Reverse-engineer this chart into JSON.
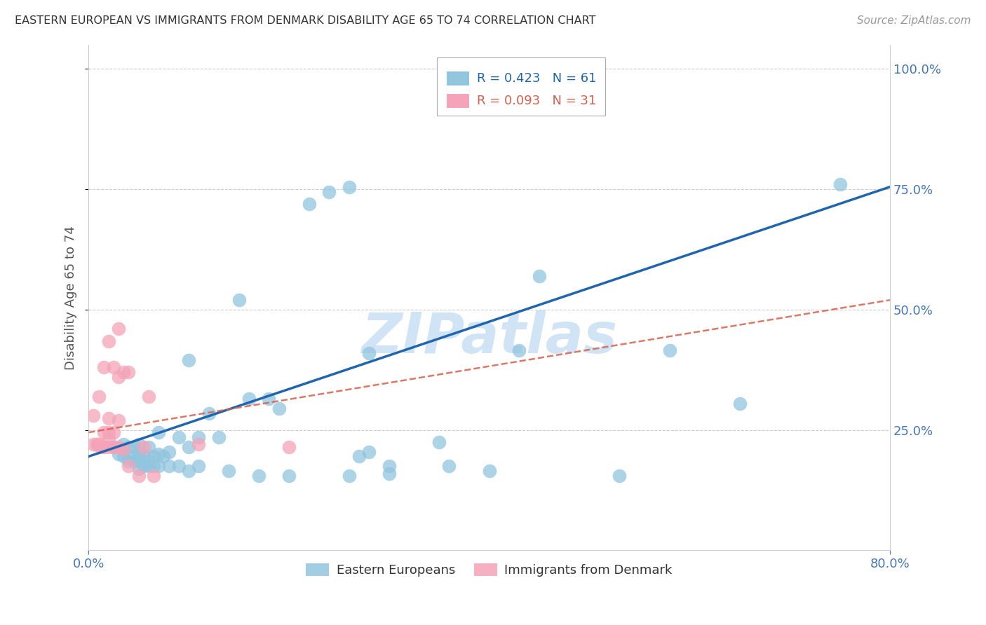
{
  "title": "EASTERN EUROPEAN VS IMMIGRANTS FROM DENMARK DISABILITY AGE 65 TO 74 CORRELATION CHART",
  "source": "Source: ZipAtlas.com",
  "ylabel": "Disability Age 65 to 74",
  "x_min": 0.0,
  "x_max": 0.8,
  "y_min": 0.0,
  "y_max": 1.05,
  "legend_r1": "R = 0.423",
  "legend_n1": "N = 61",
  "legend_r2": "R = 0.093",
  "legend_n2": "N = 31",
  "legend_label1": "Eastern Europeans",
  "legend_label2": "Immigrants from Denmark",
  "blue_color": "#92c5de",
  "pink_color": "#f4a3b8",
  "blue_line_color": "#2166ac",
  "pink_line_color": "#d6604d",
  "axis_color": "#4477bb",
  "grid_color": "#cccccc",
  "title_color": "#333333",
  "watermark_color": "#d0e4f5",
  "blue_scatter_x": [
    0.025,
    0.03,
    0.035,
    0.035,
    0.04,
    0.04,
    0.04,
    0.045,
    0.045,
    0.05,
    0.05,
    0.05,
    0.05,
    0.05,
    0.055,
    0.055,
    0.06,
    0.06,
    0.06,
    0.065,
    0.065,
    0.07,
    0.07,
    0.07,
    0.075,
    0.08,
    0.08,
    0.09,
    0.09,
    0.1,
    0.1,
    0.1,
    0.11,
    0.11,
    0.12,
    0.13,
    0.14,
    0.15,
    0.16,
    0.17,
    0.18,
    0.19,
    0.2,
    0.22,
    0.24,
    0.26,
    0.28,
    0.3,
    0.35,
    0.36,
    0.4,
    0.43,
    0.45,
    0.53,
    0.58,
    0.65,
    0.26,
    0.27,
    0.3,
    0.28,
    0.75
  ],
  "blue_scatter_y": [
    0.215,
    0.2,
    0.195,
    0.22,
    0.185,
    0.195,
    0.215,
    0.185,
    0.215,
    0.17,
    0.185,
    0.195,
    0.205,
    0.22,
    0.175,
    0.195,
    0.175,
    0.185,
    0.215,
    0.175,
    0.195,
    0.175,
    0.2,
    0.245,
    0.195,
    0.175,
    0.205,
    0.175,
    0.235,
    0.165,
    0.215,
    0.395,
    0.175,
    0.235,
    0.285,
    0.235,
    0.165,
    0.52,
    0.315,
    0.155,
    0.315,
    0.295,
    0.155,
    0.72,
    0.745,
    0.755,
    0.205,
    0.175,
    0.225,
    0.175,
    0.165,
    0.415,
    0.57,
    0.155,
    0.415,
    0.305,
    0.155,
    0.195,
    0.16,
    0.41,
    0.76
  ],
  "pink_scatter_x": [
    0.005,
    0.005,
    0.008,
    0.01,
    0.01,
    0.012,
    0.015,
    0.015,
    0.015,
    0.02,
    0.02,
    0.02,
    0.02,
    0.02,
    0.025,
    0.025,
    0.025,
    0.03,
    0.03,
    0.03,
    0.03,
    0.035,
    0.035,
    0.04,
    0.04,
    0.05,
    0.055,
    0.06,
    0.065,
    0.11,
    0.2
  ],
  "pink_scatter_y": [
    0.22,
    0.28,
    0.22,
    0.22,
    0.32,
    0.215,
    0.215,
    0.245,
    0.38,
    0.215,
    0.23,
    0.245,
    0.275,
    0.435,
    0.215,
    0.245,
    0.38,
    0.215,
    0.27,
    0.36,
    0.46,
    0.21,
    0.37,
    0.175,
    0.37,
    0.155,
    0.215,
    0.32,
    0.155,
    0.22,
    0.215
  ],
  "blue_line_x": [
    0.0,
    0.8
  ],
  "blue_line_y": [
    0.195,
    0.755
  ],
  "pink_line_x": [
    0.0,
    0.8
  ],
  "pink_line_y": [
    0.245,
    0.52
  ]
}
